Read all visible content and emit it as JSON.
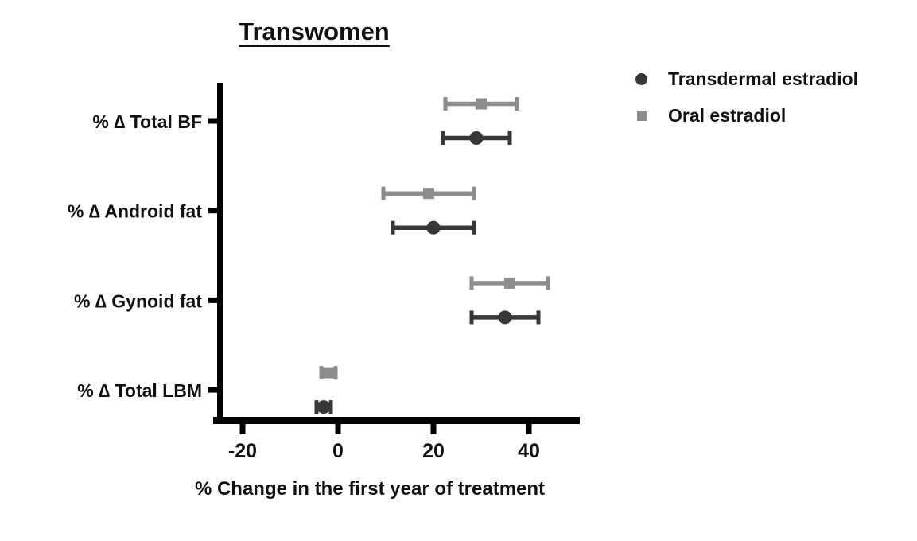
{
  "title": "Transwomen",
  "legend": {
    "items": [
      {
        "label": "Transdermal estradiol",
        "marker": "circle",
        "color": "#373737"
      },
      {
        "label": "Oral estradiol",
        "marker": "square",
        "color": "#8d8d8d"
      }
    ]
  },
  "chart_data": {
    "type": "scatter",
    "subtype": "horizontal dot plot with error bars (forest-style)",
    "title": "Transwomen",
    "xlabel": "% Change in the first year of treatment",
    "ylabel": "",
    "xlim": [
      -25,
      50
    ],
    "xticks": [
      -20,
      0,
      20,
      40
    ],
    "grid": false,
    "legend_position": "outside upper right",
    "categories": [
      "% ∆ Total BF",
      "% ∆ Android fat",
      "% ∆ Gynoid fat",
      "% ∆ Total LBM"
    ],
    "series": [
      {
        "name": "Transdermal estradiol",
        "marker": "circle",
        "color": "#373737",
        "values": [
          29,
          20,
          35,
          -3
        ],
        "ci_low": [
          22,
          11.5,
          28,
          -4.5
        ],
        "ci_high": [
          36,
          28.5,
          42,
          -1.5
        ]
      },
      {
        "name": "Oral estradiol",
        "marker": "square",
        "color": "#8d8d8d",
        "values": [
          30,
          19,
          36,
          -2
        ],
        "ci_low": [
          22.5,
          9.5,
          28,
          -3.5
        ],
        "ci_high": [
          37.5,
          28.5,
          44,
          -0.5
        ]
      }
    ],
    "axis_color": "#000000"
  }
}
